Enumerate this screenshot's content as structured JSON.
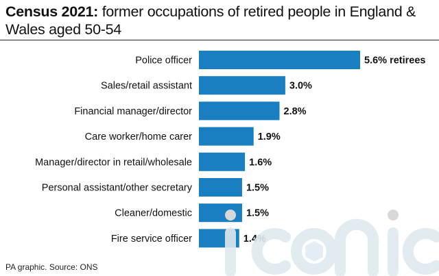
{
  "header": {
    "title_lead": "Census 2021:",
    "title_rest": " former occupations of retired people in England & Wales aged 50-54"
  },
  "footer": {
    "source": "PA graphic. Source: ONS"
  },
  "watermark": {
    "text": "iconic"
  },
  "colors": {
    "bar": "#1a7fc1",
    "text": "#111111",
    "watermark": "#dfe9ef"
  },
  "chart_data": {
    "type": "bar",
    "orientation": "horizontal",
    "categories": [
      "Police officer",
      "Sales/retail assistant",
      "Financial manager/director",
      "Care worker/home carer",
      "Manager/director in retail/wholesale",
      "Personal assistant/other secretary",
      "Cleaner/domestic",
      "Fire service officer"
    ],
    "values": [
      5.6,
      3.0,
      2.8,
      1.9,
      1.6,
      1.5,
      1.5,
      1.4
    ],
    "value_labels": [
      "5.6% retirees",
      "3.0%",
      "2.8%",
      "1.9%",
      "1.6%",
      "1.5%",
      "1.5%",
      "1.4%"
    ],
    "unit": "%",
    "xlim": [
      0,
      5.6
    ],
    "grid": false,
    "legend": "none"
  }
}
